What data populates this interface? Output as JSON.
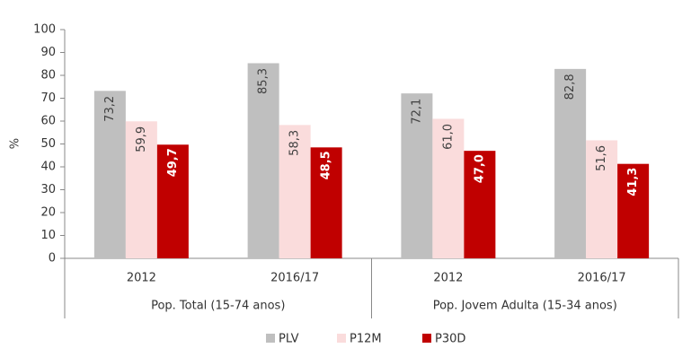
{
  "chart_data": {
    "type": "bar",
    "y_label": "%",
    "categories": [
      "2012",
      "2016/17",
      "2012",
      "2016/17"
    ],
    "category_groups": [
      "Pop. Total (15-74 anos)",
      "Pop. Jovem Adulta (15-34 anos)"
    ],
    "series": [
      {
        "name": "PLV",
        "color": "#bfbfbf",
        "label_color": "#404040",
        "values": [
          73.2,
          85.3,
          72.1,
          82.8
        ],
        "value_labels": [
          "73,2",
          "85,3",
          "72,1",
          "82,8"
        ]
      },
      {
        "name": "P12M",
        "color": "#fadcdc",
        "label_color": "#404040",
        "values": [
          59.9,
          58.3,
          61.0,
          51.6
        ],
        "value_labels": [
          "59,9",
          "58,3",
          "61,0",
          "51,6"
        ]
      },
      {
        "name": "P30D",
        "color": "#c00000",
        "label_color": "#ffffff",
        "values": [
          49.7,
          48.5,
          47.0,
          41.3
        ],
        "value_labels": [
          "49,7",
          "48,5",
          "47,0",
          "41,3"
        ]
      }
    ],
    "ylim": [
      0,
      100
    ],
    "yticks": [
      0,
      10,
      20,
      30,
      40,
      50,
      60,
      70,
      80,
      90,
      100
    ],
    "grid": false,
    "legend": "bottom"
  }
}
